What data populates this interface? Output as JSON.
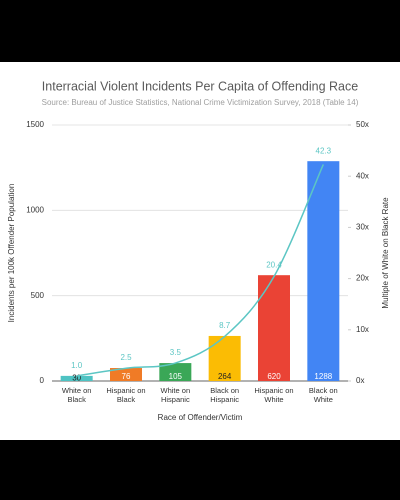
{
  "chart_data": {
    "type": "bar",
    "title": "Interracial Violent Incidents Per Capita of Offending Race",
    "subtitle": "Source: Bureau of Justice Statistics, National Crime Victimization Survey, 2018 (Table 14)",
    "xlabel": "Race of Offender/Victim",
    "ylabel": "Incidents per 100k Offender Population",
    "y2label": "Multiple of White on Black Rate",
    "categories": [
      "White on Black",
      "Hispanic on Black",
      "White on Hispanic",
      "Black on Hispanic",
      "Hispanic on White",
      "Black on White"
    ],
    "series": [
      {
        "type": "bar",
        "colors": [
          "#4ec3c3",
          "#f07b26",
          "#3aa757",
          "#fbbc04",
          "#ea4335",
          "#4285f4"
        ],
        "values": [
          30,
          76,
          105,
          264,
          620,
          1288
        ]
      },
      {
        "type": "line",
        "axis": "y2",
        "color": "#5cc6c4",
        "values": [
          1.0,
          2.5,
          3.5,
          8.7,
          20.4,
          42.3
        ],
        "value_labels": [
          "1.0",
          "2.5",
          "3.5",
          "8.7",
          "20.4",
          "42.3"
        ]
      }
    ],
    "ylim": [
      0,
      1500
    ],
    "yticks": [
      0,
      500,
      1000,
      1500
    ],
    "y2lim": [
      0,
      50
    ],
    "y2ticks": [
      {
        "value": 0,
        "label": "0x"
      },
      {
        "value": 10,
        "label": "10x"
      },
      {
        "value": 20,
        "label": "20x"
      },
      {
        "value": 30,
        "label": "30x"
      },
      {
        "value": 40,
        "label": "40x"
      },
      {
        "value": 50,
        "label": "50x"
      }
    ],
    "grid": true
  }
}
